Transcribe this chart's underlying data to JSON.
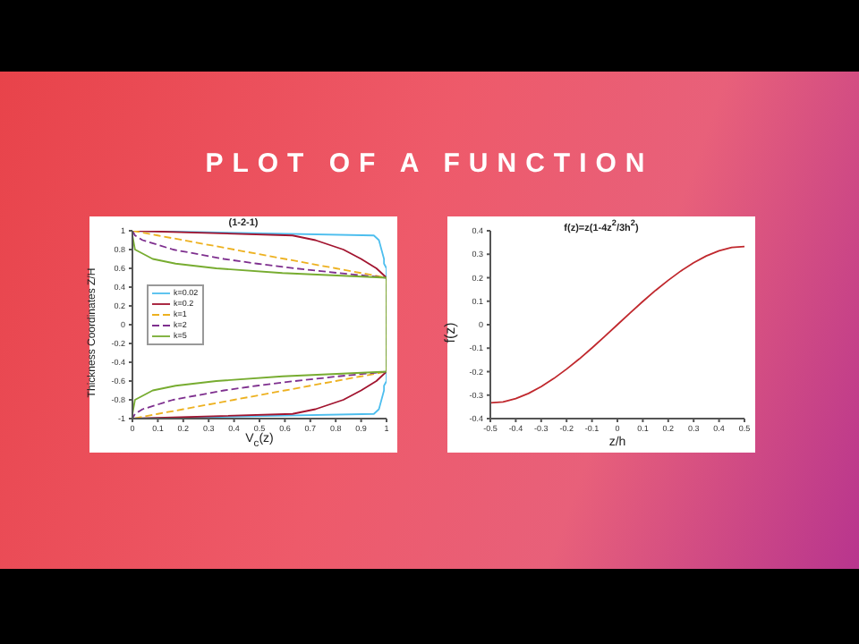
{
  "chart_data": [
    {
      "type": "line",
      "title": "(1-2-1)",
      "xlabel": "V$_{c}$(z)",
      "ylabel": "Thickness Coordinates Z/H",
      "annotations": [
        "PLOT OF A FUNCTION"
      ],
      "xlim": [
        0,
        1
      ],
      "xticks": [
        0,
        0.1,
        0.2,
        0.3,
        0.4,
        0.5,
        0.6,
        0.7,
        0.8,
        0.9,
        1
      ],
      "ylim": [
        -1,
        1
      ],
      "yticks": [
        -1,
        -0.8,
        -0.6,
        -0.4,
        -0.2,
        0,
        0.2,
        0.4,
        0.6,
        0.8,
        1
      ],
      "grid": false,
      "legend": "left",
      "series": [
        {
          "name": "k=0.02",
          "color": "#4dbeee",
          "line_style": "solid",
          "x": [
            0,
            0.95,
            0.97,
            0.98,
            0.99,
            0.99,
            1,
            1,
            1,
            1,
            1,
            1,
            0.99,
            0.99,
            0.98,
            0.97,
            0.95,
            0
          ],
          "values": [
            1,
            0.95,
            0.9,
            0.8,
            0.7,
            0.65,
            0.6,
            0.55,
            0.5,
            -0.5,
            -0.55,
            -0.6,
            -0.65,
            -0.7,
            -0.8,
            -0.9,
            -0.95,
            -1
          ]
        },
        {
          "name": "k=0.2",
          "color": "#a2142f",
          "line_style": "solid",
          "x": [
            0,
            0.63,
            0.72,
            0.83,
            0.9,
            0.93,
            0.96,
            0.98,
            1,
            1,
            0.98,
            0.96,
            0.93,
            0.9,
            0.83,
            0.72,
            0.63,
            0
          ],
          "values": [
            1,
            0.95,
            0.9,
            0.8,
            0.7,
            0.65,
            0.6,
            0.55,
            0.5,
            -0.5,
            -0.55,
            -0.6,
            -0.65,
            -0.7,
            -0.8,
            -0.9,
            -0.95,
            -1
          ]
        },
        {
          "name": "k=1",
          "color": "#edb120",
          "line_style": "dashed",
          "x": [
            0,
            0.1,
            0.2,
            0.4,
            0.6,
            0.7,
            0.8,
            0.9,
            1,
            1,
            0.9,
            0.8,
            0.7,
            0.6,
            0.4,
            0.2,
            0.1,
            0
          ],
          "values": [
            1,
            0.95,
            0.9,
            0.8,
            0.7,
            0.65,
            0.6,
            0.55,
            0.5,
            -0.5,
            -0.55,
            -0.6,
            -0.65,
            -0.7,
            -0.8,
            -0.9,
            -0.95,
            -1
          ]
        },
        {
          "name": "k=2",
          "color": "#7e2f8e",
          "line_style": "dashed",
          "x": [
            0,
            0.01,
            0.04,
            0.16,
            0.36,
            0.49,
            0.64,
            0.81,
            1,
            1,
            0.81,
            0.64,
            0.49,
            0.36,
            0.16,
            0.04,
            0.01,
            0
          ],
          "values": [
            1,
            0.95,
            0.9,
            0.8,
            0.7,
            0.65,
            0.6,
            0.55,
            0.5,
            -0.5,
            -0.55,
            -0.6,
            -0.65,
            -0.7,
            -0.8,
            -0.9,
            -0.95,
            -1
          ]
        },
        {
          "name": "k=5",
          "color": "#77ac30",
          "line_style": "solid",
          "x": [
            0,
            0.01,
            0.08,
            0.17,
            0.33,
            0.59,
            1,
            1,
            0.59,
            0.33,
            0.17,
            0.08,
            0.01,
            0
          ],
          "values": [
            0.95,
            0.8,
            0.7,
            0.65,
            0.6,
            0.55,
            0.5,
            -0.5,
            -0.55,
            -0.6,
            -0.65,
            -0.7,
            -0.8,
            -0.95
          ]
        }
      ]
    },
    {
      "type": "line",
      "title": "f(z)=z(1-4z$^{2}$/3h$^{2}$)",
      "xlabel": "z/h",
      "ylabel": "f(z)",
      "xlim": [
        -0.5,
        0.5
      ],
      "xticks": [
        -0.5,
        -0.4,
        -0.3,
        -0.2,
        -0.1,
        0,
        0.1,
        0.2,
        0.3,
        0.4,
        0.5
      ],
      "ylim": [
        -0.4,
        0.4
      ],
      "yticks": [
        -0.4,
        -0.3,
        -0.2,
        -0.1,
        0,
        0.1,
        0.2,
        0.3,
        0.4
      ],
      "grid": false,
      "legend": false,
      "series": [
        {
          "color": "#c0282d",
          "line_style": "solid",
          "x": [
            -0.5,
            -0.45,
            -0.4,
            -0.35,
            -0.3,
            -0.25,
            -0.2,
            -0.15,
            -0.1,
            -0.05,
            0,
            0.05,
            0.1,
            0.15,
            0.2,
            0.25,
            0.3,
            0.35,
            0.4,
            0.45,
            0.5
          ],
          "values": [
            -0.333,
            -0.329,
            -0.315,
            -0.293,
            -0.264,
            -0.229,
            -0.189,
            -0.146,
            -0.099,
            -0.05,
            0,
            0.05,
            0.099,
            0.146,
            0.189,
            0.229,
            0.264,
            0.293,
            0.315,
            0.329,
            0.333
          ]
        }
      ]
    }
  ]
}
